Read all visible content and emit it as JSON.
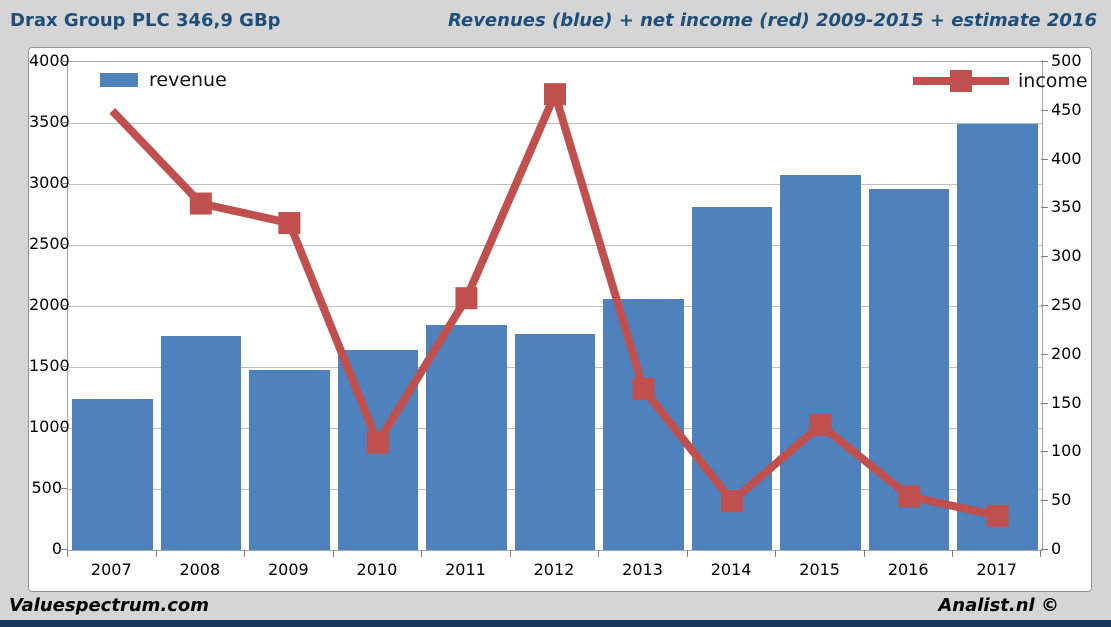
{
  "header": {
    "title_left": "Drax Group PLC 346,9 GBp",
    "title_right": "Revenues (blue) + net income (red) 2009-2015 + estimate 2016"
  },
  "footer": {
    "left": "Valuespectrum.com",
    "right": "Analist.nl ©"
  },
  "colors": {
    "bar_blue": "#4f81bd",
    "line_red": "#c0504d",
    "title_navy": "#1f4e79",
    "background_gray": "#d5d5d5",
    "bottom_bar_navy": "#17375e"
  },
  "chart_data": {
    "type": "bar",
    "title": "Drax Group PLC 346,9 GBp",
    "subtitle": "Revenues (blue) + net income (red) 2009-2015 + estimate 2016",
    "categories": [
      "2007",
      "2008",
      "2009",
      "2010",
      "2011",
      "2012",
      "2013",
      "2014",
      "2015",
      "2016",
      "2017"
    ],
    "series": [
      {
        "name": "revenue",
        "type": "bar",
        "axis": "left",
        "color": "#4f81bd",
        "values": [
          1240,
          1755,
          1475,
          1640,
          1845,
          1770,
          2055,
          2810,
          3075,
          2960,
          3490
        ]
      },
      {
        "name": "income",
        "type": "line",
        "axis": "right",
        "color": "#c0504d",
        "marker": "square",
        "first_point_marker": false,
        "values": [
          450,
          355,
          335,
          110,
          258,
          467,
          165,
          50,
          128,
          55,
          35
        ]
      }
    ],
    "left_axis": {
      "min": 0,
      "max": 4000,
      "step": 500
    },
    "right_axis": {
      "min": 0,
      "max": 500,
      "step": 50
    },
    "grid": true,
    "legend_position": "top-inside"
  }
}
